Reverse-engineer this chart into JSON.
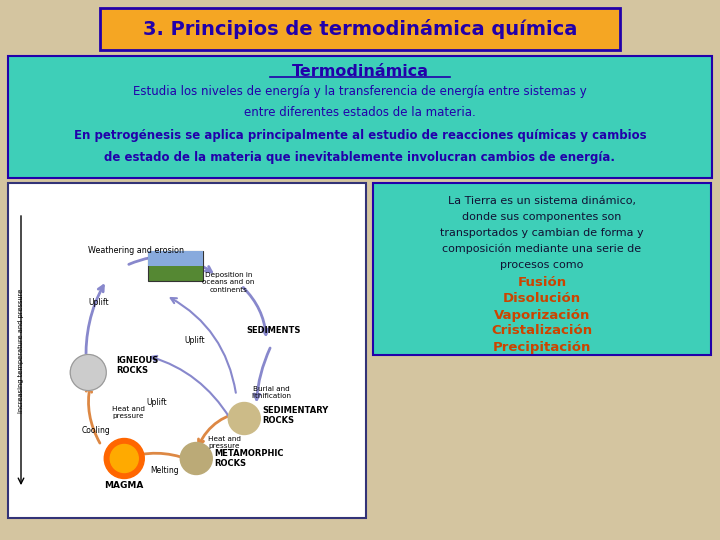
{
  "title": "3. Principios de termodinámica química",
  "title_bg": "#F5A623",
  "title_text_color": "#2200AA",
  "title_border_color": "#2200AA",
  "bg_color": "#D4C5A0",
  "top_box_bg": "#3ECFB8",
  "top_box_border": "#2200AA",
  "top_box_text_color": "#2200AA",
  "top_box_title": "Termodinámica",
  "top_box_line1": "Estudia los niveles de energía y la transferencia de energía entre sistemas y",
  "top_box_line2": "entre diferentes estados de la materia.",
  "top_box_line3": "En petrogénesis se aplica principalmente al estudio de reacciones químicas y cambios",
  "top_box_line4": "de estado de la materia que inevitablemente involucran cambios de energía.",
  "right_box_bg": "#3ECFB8",
  "right_box_border": "#2200AA",
  "right_box_text_color": "#111133",
  "right_box_para_lines": [
    "La Tierra es un sistema dinámico,",
    "donde sus componentes son",
    "transportados y cambian de forma y",
    "composición mediante una serie de",
    "procesos como"
  ],
  "right_box_list_color": "#CC4400",
  "right_box_list": [
    "Fusión",
    "Disolución",
    "Vaporización",
    "Cristalización",
    "Precipitación"
  ],
  "img_labels": {
    "weathering": "Weathering and erosion",
    "deposition": "Deposition in\noceans and on\ncontinents",
    "sediments": "SEDIMENTS",
    "burial": "Burial and\nlithification",
    "uplift1": "Uplift",
    "uplift2": "Uplift",
    "uplift3": "Uplift",
    "igneous": "IGNEOUS\nROCKS",
    "sedimentary": "SEDIMENTARY\nROCKS",
    "heat1": "Heat and\npressure",
    "heat2": "Heat and\npressure",
    "metamorphic": "METAMORPHIC\nROCKS",
    "cooling": "Cooling",
    "melting": "Melting",
    "magma": "MAGMA",
    "yaxis": "Increasing temperature and pressure"
  }
}
